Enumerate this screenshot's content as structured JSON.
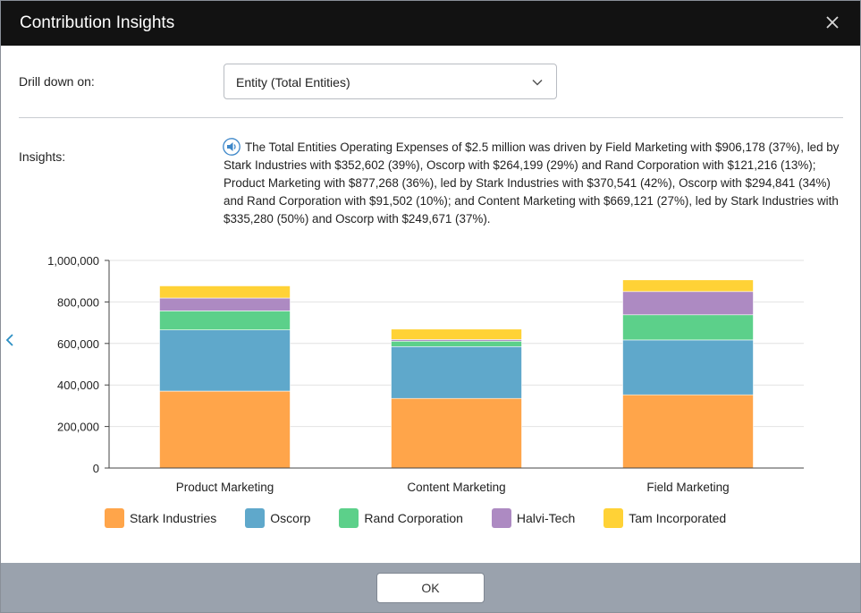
{
  "dialog": {
    "title": "Contribution Insights"
  },
  "drill": {
    "label": "Drill down on:",
    "selected": "Entity (Total Entities)"
  },
  "insights": {
    "label": "Insights:",
    "text": "The Total Entities Operating Expenses of $2.5 million was driven by Field Marketing with $906,178 (37%), led by Stark Industries with $352,602 (39%), Oscorp with $264,199 (29%) and Rand Corporation with $121,216 (13%); Product Marketing with $877,268 (36%), led by Stark Industries with $370,541 (42%), Oscorp with $294,841 (34%) and Rand Corporation with $91,502 (10%); and Content Marketing with $669,121 (27%), led by Stark Industries with $335,280 (50%) and Oscorp with $249,671 (37%)."
  },
  "icons": {
    "close": "close-icon",
    "dropdown": "chevron-down-icon",
    "speaker": "speaker-icon",
    "nav": "chevron-left-icon"
  },
  "chart_data": {
    "type": "bar",
    "stacked": true,
    "categories": [
      "Product Marketing",
      "Content Marketing",
      "Field Marketing"
    ],
    "series": [
      {
        "name": "Stark Industries",
        "color": "#ffa54a",
        "values": [
          370541,
          335280,
          352602
        ]
      },
      {
        "name": "Oscorp",
        "color": "#5fa8cb",
        "values": [
          294841,
          249671,
          264199
        ]
      },
      {
        "name": "Rand Corporation",
        "color": "#5cd08a",
        "values": [
          91502,
          26000,
          121216
        ]
      },
      {
        "name": "Halvi-Tech",
        "color": "#ad8ac2",
        "values": [
          62000,
          8000,
          112000
        ]
      },
      {
        "name": "Tam Incorporated",
        "color": "#ffd236",
        "values": [
          58384,
          50170,
          56161
        ]
      }
    ],
    "yticks": [
      "0",
      "200,000",
      "400,000",
      "600,000",
      "800,000",
      "1,000,000"
    ],
    "ylim": [
      0,
      1000000
    ],
    "grid": true,
    "legend_position": "bottom"
  },
  "footer": {
    "ok_label": "OK"
  }
}
